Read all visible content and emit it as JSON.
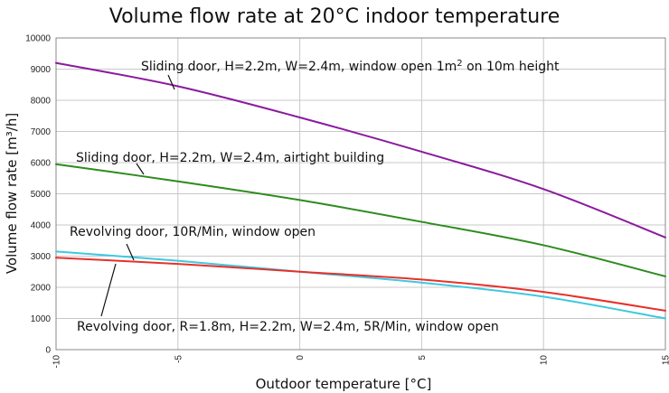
{
  "chart_data": {
    "type": "line",
    "title": "Volume flow rate at 20°C indoor temperature",
    "xlabel": "Outdoor temperature [°C]",
    "ylabel": "Volume flow rate [m³/h]",
    "xlim": [
      -10,
      15
    ],
    "ylim": [
      0,
      10000
    ],
    "xticks": [
      -10,
      -5,
      0,
      5,
      10,
      15
    ],
    "yticks": [
      0,
      1000,
      2000,
      3000,
      4000,
      5000,
      6000,
      7000,
      8000,
      9000,
      10000
    ],
    "grid": true,
    "series": [
      {
        "name": "Sliding door, H=2.2m, W=2.4m, window open 1m² on 10m height",
        "color": "#8b1a9e",
        "x": [
          -10,
          -5,
          0,
          5,
          10,
          15
        ],
        "y": [
          9200,
          8450,
          7450,
          6350,
          5150,
          3600
        ]
      },
      {
        "name": "Sliding door, H=2.2m, W=2.4m, airtight building",
        "color": "#2e8b1e",
        "x": [
          -10,
          -5,
          0,
          5,
          10,
          15
        ],
        "y": [
          5950,
          5400,
          4800,
          4100,
          3350,
          2350
        ]
      },
      {
        "name": "Revolving door, 10R/Min, window open",
        "color": "#3fc8e0",
        "x": [
          -10,
          -5,
          0,
          5,
          10,
          15
        ],
        "y": [
          3150,
          2850,
          2500,
          2150,
          1700,
          1000
        ]
      },
      {
        "name": "Revolving door, R=1.8m, H=2.2m, W=2.4m, 5R/Min, window open",
        "color": "#e8302a",
        "x": [
          -10,
          -5,
          0,
          5,
          10,
          15
        ],
        "y": [
          2950,
          2750,
          2500,
          2250,
          1850,
          1250
        ]
      }
    ],
    "annotations": [
      {
        "text_main": "Sliding door, H=2.2m, W=2.4m, window open 1m",
        "sup": "2",
        "text_tail": " on 10m height"
      },
      {
        "text": "Sliding door, H=2.2m, W=2.4m, airtight building"
      },
      {
        "text": "Revolving door, 10R/Min, window open"
      },
      {
        "text": "Revolving door, R=1.8m, H=2.2m, W=2.4m, 5R/Min, window open"
      }
    ]
  }
}
